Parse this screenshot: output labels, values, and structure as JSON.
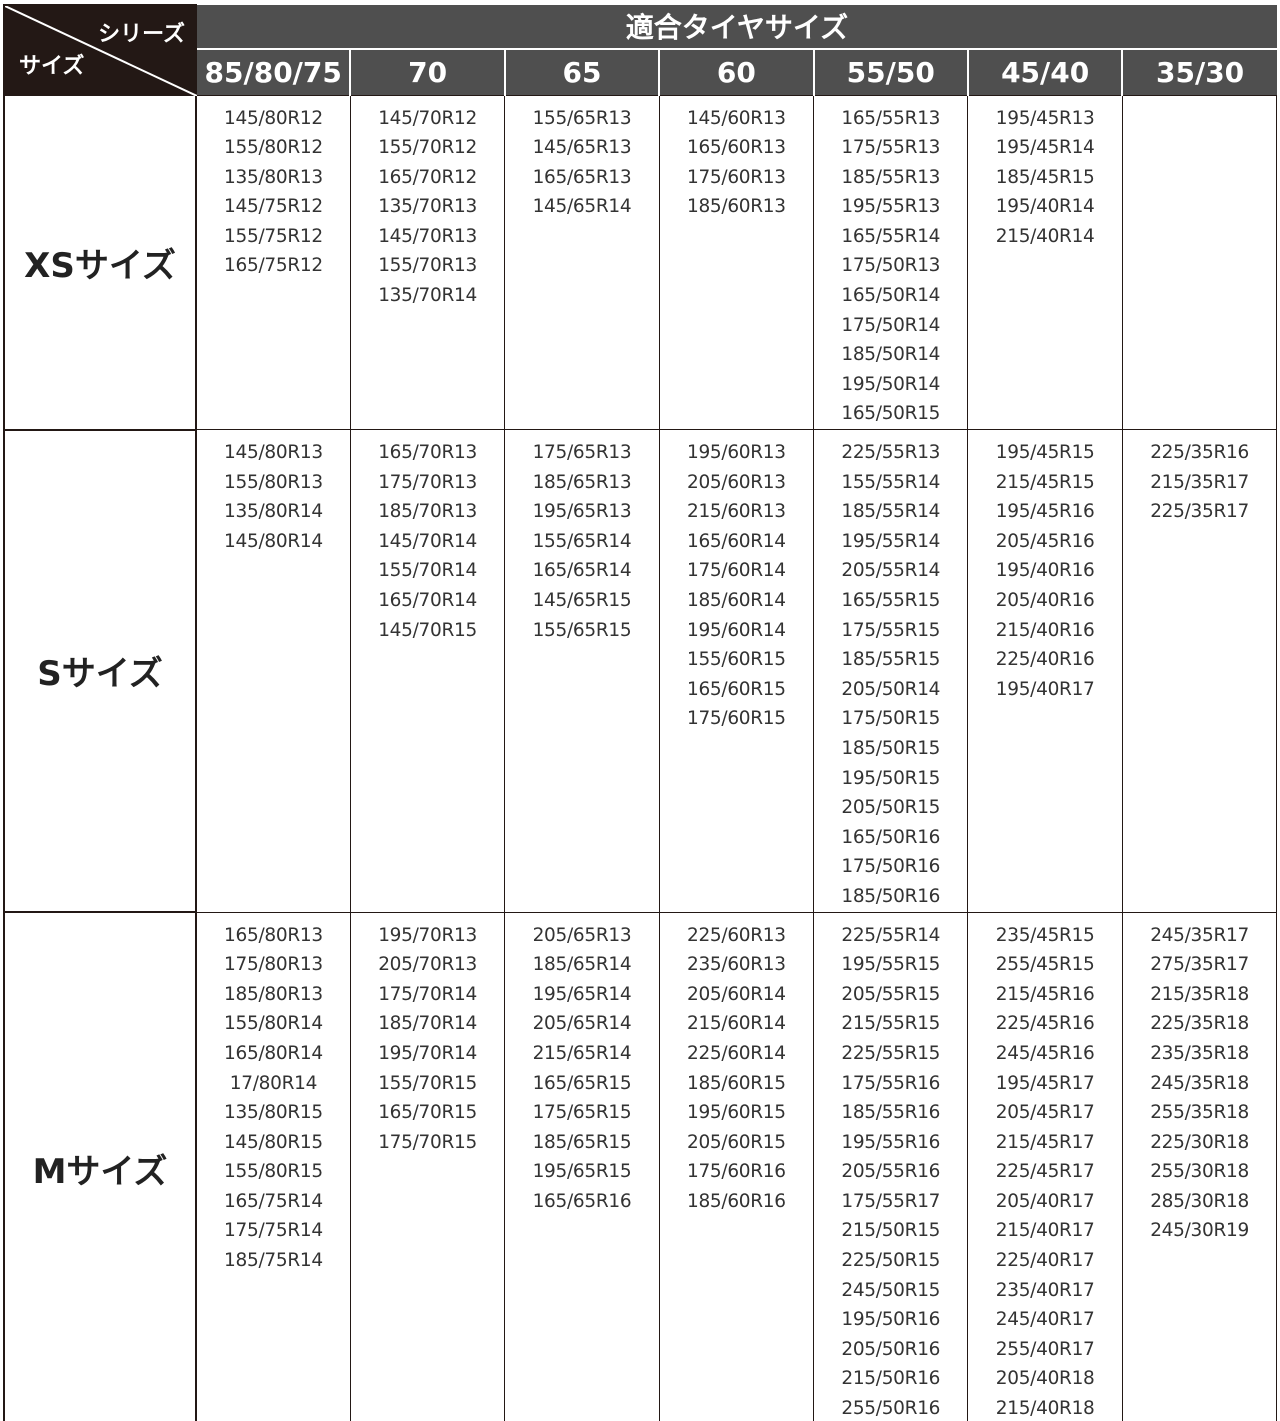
{
  "header": {
    "corner_series": "シリーズ",
    "corner_size": "サイズ",
    "title": "適合タイヤサイズ",
    "columns": [
      "85/80/75",
      "70",
      "65",
      "60",
      "55/50",
      "45/40",
      "35/30"
    ]
  },
  "colors": {
    "corner_bg": "#231815",
    "header_bg": "#4f4f4f",
    "border": "#231815"
  },
  "rows": [
    {
      "label": "XSサイズ",
      "cells": [
        [
          "145/80R12",
          "155/80R12",
          "135/80R13",
          "145/75R12",
          "155/75R12",
          "165/75R12"
        ],
        [
          "145/70R12",
          "155/70R12",
          "165/70R12",
          "135/70R13",
          "145/70R13",
          "155/70R13",
          "135/70R14"
        ],
        [
          "155/65R13",
          "145/65R13",
          "165/65R13",
          "145/65R14"
        ],
        [
          "145/60R13",
          "165/60R13",
          "175/60R13",
          "185/60R13"
        ],
        [
          "165/55R13",
          "175/55R13",
          "185/55R13",
          "195/55R13",
          "165/55R14",
          "175/50R13",
          "165/50R14",
          "175/50R14",
          "185/50R14",
          "195/50R14",
          "165/50R15"
        ],
        [
          "195/45R13",
          "195/45R14",
          "185/45R15",
          "195/40R14",
          "215/40R14"
        ],
        []
      ]
    },
    {
      "label": "Sサイズ",
      "cells": [
        [
          "145/80R13",
          "155/80R13",
          "135/80R14",
          "145/80R14"
        ],
        [
          "165/70R13",
          "175/70R13",
          "185/70R13",
          "145/70R14",
          "155/70R14",
          "165/70R14",
          "145/70R15"
        ],
        [
          "175/65R13",
          "185/65R13",
          "195/65R13",
          "155/65R14",
          "165/65R14",
          "145/65R15",
          "155/65R15"
        ],
        [
          "195/60R13",
          "205/60R13",
          "215/60R13",
          "165/60R14",
          "175/60R14",
          "185/60R14",
          "195/60R14",
          "155/60R15",
          "165/60R15",
          "175/60R15"
        ],
        [
          "225/55R13",
          "155/55R14",
          "185/55R14",
          "195/55R14",
          "205/55R14",
          "165/55R15",
          "175/55R15",
          "185/55R15",
          "205/50R14",
          "175/50R15",
          "185/50R15",
          "195/50R15",
          "205/50R15",
          "165/50R16",
          "175/50R16",
          "185/50R16"
        ],
        [
          "195/45R15",
          "215/45R15",
          "195/45R16",
          "205/45R16",
          "195/40R16",
          "205/40R16",
          "215/40R16",
          "225/40R16",
          "195/40R17"
        ],
        [
          "225/35R16",
          "215/35R17",
          "225/35R17"
        ]
      ]
    },
    {
      "label": "Mサイズ",
      "cells": [
        [
          "165/80R13",
          "175/80R13",
          "185/80R13",
          "155/80R14",
          "165/80R14",
          "17/80R14",
          "135/80R15",
          "145/80R15",
          "155/80R15",
          "165/75R14",
          "175/75R14",
          "185/75R14"
        ],
        [
          "195/70R13",
          "205/70R13",
          "175/70R14",
          "185/70R14",
          "195/70R14",
          "155/70R15",
          "165/70R15",
          "175/70R15"
        ],
        [
          "205/65R13",
          "185/65R14",
          "195/65R14",
          "205/65R14",
          "215/65R14",
          "165/65R15",
          "175/65R15",
          "185/65R15",
          "195/65R15",
          "165/65R16"
        ],
        [
          "225/60R13",
          "235/60R13",
          "205/60R14",
          "215/60R14",
          "225/60R14",
          "185/60R15",
          "195/60R15",
          "205/60R15",
          "175/60R16",
          "185/60R16"
        ],
        [
          "225/55R14",
          "195/55R15",
          "205/55R15",
          "215/55R15",
          "225/55R15",
          "175/55R16",
          "185/55R16",
          "195/55R16",
          "205/55R16",
          "175/55R17",
          "215/50R15",
          "225/50R15",
          "245/50R15",
          "195/50R16",
          "205/50R16",
          "215/50R16",
          "255/50R16"
        ],
        [
          "235/45R15",
          "255/45R15",
          "215/45R16",
          "225/45R16",
          "245/45R16",
          "195/45R17",
          "205/45R17",
          "215/45R17",
          "225/45R17",
          "205/40R17",
          "215/40R17",
          "225/40R17",
          "235/40R17",
          "245/40R17",
          "255/40R17",
          "205/40R18",
          "215/40R18"
        ],
        [
          "245/35R17",
          "275/35R17",
          "215/35R18",
          "225/35R18",
          "235/35R18",
          "245/35R18",
          "255/35R18",
          "225/30R18",
          "255/30R18",
          "285/30R18",
          "245/30R19"
        ]
      ]
    }
  ]
}
